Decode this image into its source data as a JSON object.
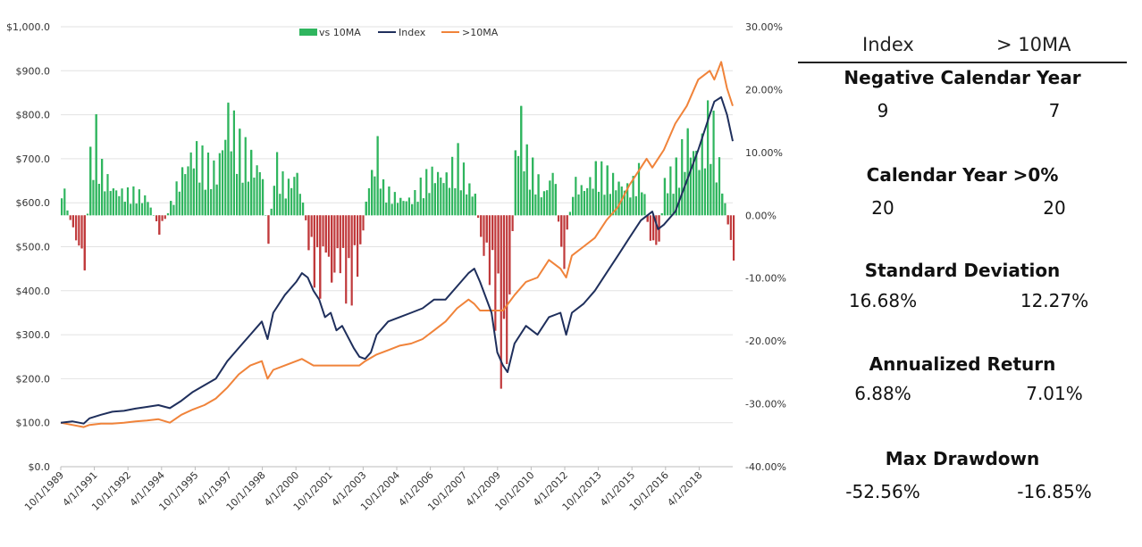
{
  "chart_data": {
    "type": "bar+line",
    "title": "",
    "legend": {
      "placement": "top-center",
      "entries": [
        "vs 10MA",
        "Index",
        ">10MA"
      ]
    },
    "colors": {
      "bars_positive": "#2fb55e",
      "bars_negative": "#c0393b",
      "index_line": "#1f2f5c",
      "ma_line": "#f0833a",
      "axis": "#bbbbbb"
    },
    "y_left": {
      "ticks": [
        "$0.0",
        "$100.0",
        "$200.0",
        "$300.0",
        "$400.0",
        "$500.0",
        "$600.0",
        "$700.0",
        "$800.0",
        "$900.0",
        "$1,000.0"
      ],
      "range": [
        0,
        1000
      ]
    },
    "y_right": {
      "ticks": [
        "-40.00%",
        "-30.00%",
        "-20.00%",
        "-10.00%",
        "0.00%",
        "10.00%",
        "20.00%",
        "30.00%"
      ],
      "range": [
        -40,
        30
      ]
    },
    "x_ticks": [
      "10/1/1989",
      "4/1/1991",
      "10/1/1992",
      "4/1/1994",
      "10/1/1995",
      "4/1/1997",
      "10/1/1998",
      "4/1/2000",
      "10/1/2001",
      "4/1/2003",
      "10/1/2004",
      "4/1/2006",
      "10/1/2007",
      "4/1/2009",
      "10/1/2010",
      "4/1/2012",
      "10/1/2013",
      "4/1/2015",
      "10/1/2016",
      "4/1/2018"
    ],
    "x_range": [
      1989.75,
      2019.0
    ],
    "series": [
      {
        "name": "Index",
        "axis": "left",
        "x": [
          1989.75,
          1990.25,
          1990.75,
          1991.0,
          1991.5,
          1992.0,
          1992.5,
          1993.0,
          1993.5,
          1994.0,
          1994.5,
          1995.0,
          1995.5,
          1996.0,
          1996.5,
          1997.0,
          1997.5,
          1998.0,
          1998.5,
          1998.75,
          1999.0,
          1999.5,
          2000.0,
          2000.25,
          2000.5,
          2000.75,
          2001.0,
          2001.25,
          2001.5,
          2001.75,
          2002.0,
          2002.5,
          2002.75,
          2003.0,
          2003.25,
          2003.5,
          2004.0,
          2004.5,
          2005.0,
          2005.5,
          2006.0,
          2006.5,
          2007.0,
          2007.5,
          2007.75,
          2008.0,
          2008.5,
          2008.75,
          2009.0,
          2009.2,
          2009.5,
          2010.0,
          2010.5,
          2011.0,
          2011.5,
          2011.75,
          2012.0,
          2012.5,
          2013.0,
          2013.5,
          2014.0,
          2014.5,
          2015.0,
          2015.5,
          2015.75,
          2016.0,
          2016.5,
          2017.0,
          2017.5,
          2018.0,
          2018.2,
          2018.5,
          2018.75,
          2019.0
        ],
        "values": [
          100,
          103,
          98,
          110,
          118,
          125,
          127,
          132,
          136,
          140,
          133,
          150,
          170,
          185,
          200,
          240,
          270,
          300,
          330,
          290,
          350,
          390,
          420,
          440,
          430,
          400,
          380,
          340,
          350,
          310,
          320,
          270,
          250,
          245,
          260,
          300,
          330,
          340,
          350,
          360,
          380,
          380,
          410,
          440,
          450,
          420,
          350,
          260,
          230,
          215,
          280,
          320,
          300,
          340,
          350,
          300,
          350,
          370,
          400,
          440,
          480,
          520,
          560,
          580,
          540,
          550,
          580,
          650,
          720,
          800,
          830,
          840,
          800,
          740
        ]
      },
      {
        "name": ">10MA",
        "axis": "left",
        "x": [
          1989.75,
          1990.25,
          1990.75,
          1991.0,
          1991.5,
          1992.0,
          1992.5,
          1993.0,
          1993.5,
          1994.0,
          1994.5,
          1995.0,
          1995.5,
          1996.0,
          1996.5,
          1997.0,
          1997.5,
          1998.0,
          1998.5,
          1998.75,
          1999.0,
          1999.5,
          2000.0,
          2000.25,
          2000.75,
          2001.0,
          2002.0,
          2002.75,
          2003.0,
          2003.5,
          2004.0,
          2004.5,
          2005.0,
          2005.5,
          2006.0,
          2006.5,
          2007.0,
          2007.5,
          2007.75,
          2008.0,
          2008.5,
          2009.0,
          2009.5,
          2010.0,
          2010.5,
          2011.0,
          2011.5,
          2011.75,
          2012.0,
          2012.5,
          2013.0,
          2013.5,
          2014.0,
          2014.5,
          2015.0,
          2015.25,
          2015.5,
          2015.75,
          2016.0,
          2016.5,
          2017.0,
          2017.5,
          2018.0,
          2018.2,
          2018.5,
          2018.75,
          2019.0
        ],
        "values": [
          100,
          95,
          90,
          95,
          98,
          98,
          100,
          103,
          105,
          108,
          100,
          118,
          130,
          140,
          155,
          180,
          210,
          230,
          240,
          200,
          220,
          230,
          240,
          245,
          230,
          230,
          230,
          230,
          240,
          255,
          265,
          275,
          280,
          290,
          310,
          330,
          360,
          380,
          370,
          355,
          355,
          355,
          390,
          420,
          430,
          470,
          450,
          430,
          480,
          500,
          520,
          560,
          590,
          640,
          680,
          700,
          680,
          700,
          720,
          780,
          820,
          880,
          900,
          880,
          920,
          860,
          820
        ]
      },
      {
        "name": "vs 10MA",
        "axis": "right",
        "type": "bar",
        "x": [
          1989.75,
          1990.25,
          1990.75,
          1991.0,
          1991.25,
          1991.5,
          1992.0,
          1992.5,
          1993.0,
          1993.5,
          1994.0,
          1994.5,
          1995.0,
          1995.5,
          1996.0,
          1996.5,
          1997.0,
          1997.5,
          1998.0,
          1998.5,
          1998.75,
          1999.0,
          1999.5,
          2000.0,
          2000.25,
          2000.5,
          2000.75,
          2001.0,
          2001.25,
          2001.5,
          2001.75,
          2002.0,
          2002.25,
          2002.5,
          2002.75,
          2003.0,
          2003.25,
          2003.5,
          2003.75,
          2004.0,
          2004.5,
          2005.0,
          2005.5,
          2006.0,
          2006.5,
          2007.0,
          2007.5,
          2007.75,
          2008.0,
          2008.25,
          2008.5,
          2008.75,
          2009.0,
          2009.25,
          2009.5,
          2009.75,
          2010.0,
          2010.25,
          2010.5,
          2010.75,
          2011.0,
          2011.25,
          2011.5,
          2011.75,
          2012.0,
          2012.5,
          2013.0,
          2013.5,
          2014.0,
          2014.5,
          2015.0,
          2015.25,
          2015.5,
          2015.75,
          2016.0,
          2016.5,
          2017.0,
          2017.5,
          2018.0,
          2018.25,
          2018.5,
          2018.75,
          2019.0
        ],
        "values": [
          6,
          -3,
          -9,
          10,
          14,
          8,
          5,
          4,
          4,
          3,
          -3,
          2,
          8,
          12,
          9,
          8,
          19,
          12,
          10,
          8,
          -8,
          10,
          5,
          8,
          2,
          -5,
          -10,
          -12,
          -6,
          -13,
          -8,
          -10,
          -15,
          -10,
          -8,
          3,
          8,
          12,
          5,
          4,
          3,
          3,
          6,
          8,
          7,
          10,
          5,
          4,
          -5,
          -8,
          -12,
          -20,
          -30,
          -18,
          12,
          17,
          10,
          8,
          6,
          4,
          7,
          8,
          -10,
          -5,
          6,
          5,
          8,
          7,
          6,
          5,
          8,
          -2,
          -6,
          -5,
          6,
          8,
          14,
          11,
          18,
          11,
          6,
          -2,
          -8
        ]
      }
    ]
  },
  "stats": {
    "headers": [
      "Index",
      "> 10MA"
    ],
    "rows": [
      {
        "title": "Negative Calendar Year",
        "index": "9",
        "ma": "7"
      },
      {
        "title": "Calendar Year >0%",
        "index": "20",
        "ma": "20"
      },
      {
        "title": "Standard Deviation",
        "index": "16.68%",
        "ma": "12.27%"
      },
      {
        "title": "Annualized Return",
        "index": "6.88%",
        "ma": "7.01%"
      },
      {
        "title": "Max Drawdown",
        "index": "-52.56%",
        "ma": "-16.85%"
      }
    ]
  }
}
